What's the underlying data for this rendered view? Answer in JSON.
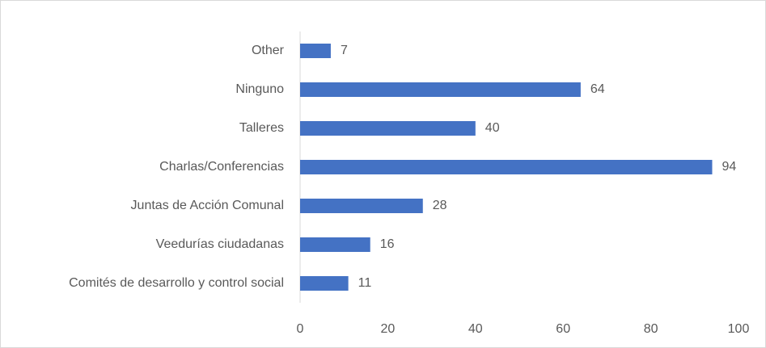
{
  "chart_data": {
    "type": "hbar",
    "categories": [
      "Other",
      "Ninguno",
      "Talleres",
      "Charlas/Conferencias",
      "Juntas de Acción Comunal",
      "Veedurías ciudadanas",
      "Comités de desarrollo y control social"
    ],
    "values": [
      7,
      64,
      40,
      94,
      28,
      16,
      11
    ],
    "color": "#4472c4",
    "xlim": [
      0,
      100
    ],
    "xticks": [
      0,
      20,
      40,
      60,
      80,
      100
    ],
    "grid": false
  }
}
